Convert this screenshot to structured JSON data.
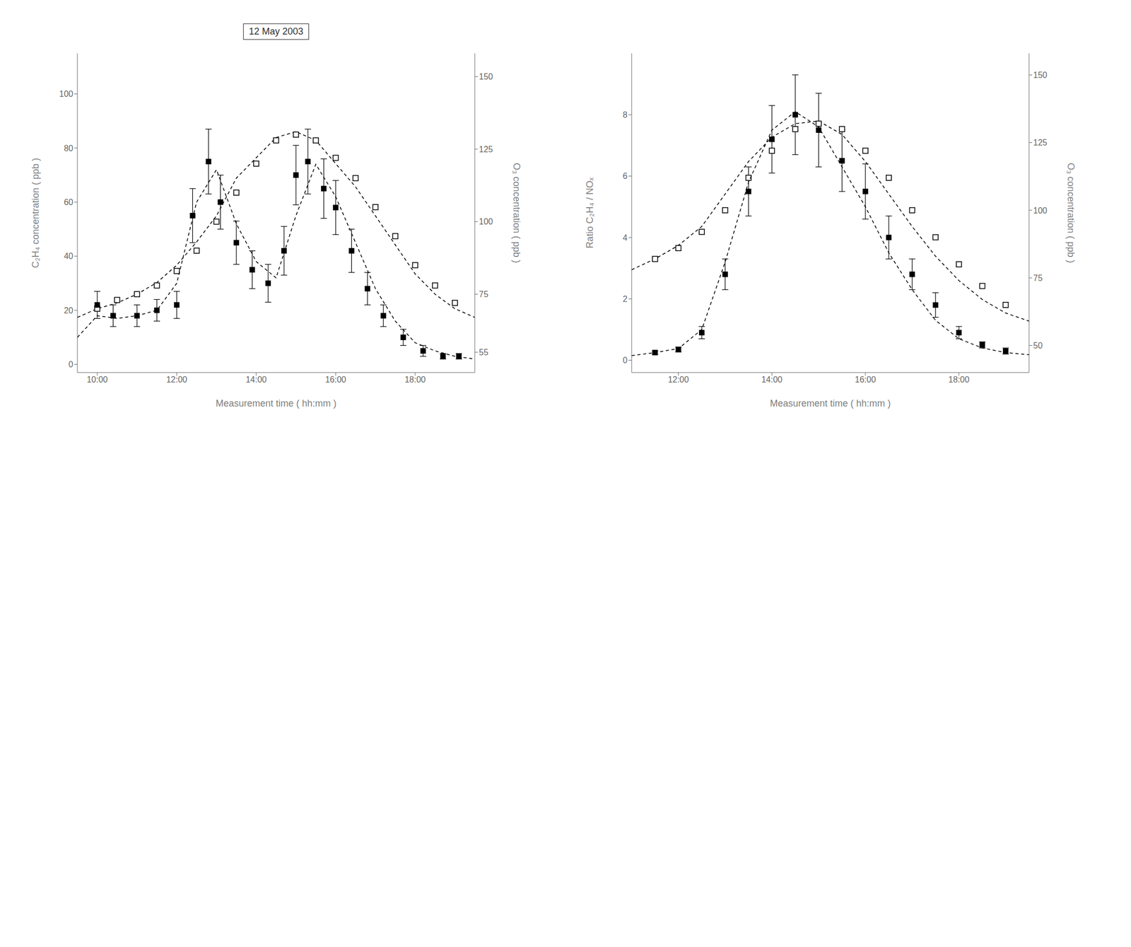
{
  "chart_data": [
    {
      "type": "scatter",
      "xlabel": "Measurement time  ( hh:mm )",
      "ylabel": "C₂H₄ concentration  ( ppb )",
      "y2label": "O₃ concentration  ( ppb )",
      "annotations": [
        {
          "text": "12 May 2003"
        }
      ],
      "xlim": [
        9.5,
        19.5
      ],
      "xticks": [
        {
          "value": 10.0,
          "label": "10:00"
        },
        {
          "value": 12.0,
          "label": "12:00"
        },
        {
          "value": 14.0,
          "label": "14:00"
        },
        {
          "value": 16.0,
          "label": "16:00"
        },
        {
          "value": 18.0,
          "label": "18:00"
        }
      ],
      "ylim": [
        -3,
        115
      ],
      "yticks": [
        0,
        20,
        40,
        60,
        80,
        100
      ],
      "y2lim": [
        48,
        158
      ],
      "y2ticks": [
        55,
        75,
        100,
        125,
        150
      ],
      "series": [
        {
          "type": "line",
          "axis": "y2",
          "line_style": "dashed",
          "marker": "none",
          "color": "#000000",
          "x": [
            9.5,
            10.0,
            10.5,
            11.0,
            11.5,
            12.0,
            12.5,
            13.0,
            13.5,
            14.0,
            14.5,
            15.0,
            15.5,
            16.0,
            16.5,
            17.0,
            17.5,
            18.0,
            18.5,
            19.0,
            19.5
          ],
          "values": [
            67,
            70,
            72,
            75,
            79,
            85,
            93,
            102,
            115,
            122,
            129,
            131,
            128,
            120,
            112,
            102,
            92,
            82,
            75,
            70,
            67
          ]
        },
        {
          "type": "scatter",
          "axis": "y2",
          "marker": "open_square",
          "color": "#000000",
          "x": [
            10.0,
            10.5,
            11.0,
            11.5,
            12.0,
            12.5,
            13.0,
            13.5,
            14.0,
            14.5,
            15.0,
            15.5,
            16.0,
            16.5,
            17.0,
            17.5,
            18.0,
            18.5,
            19.0
          ],
          "values": [
            70,
            73,
            75,
            78,
            83,
            90,
            100,
            110,
            120,
            128,
            130,
            128,
            122,
            115,
            105,
            95,
            85,
            78,
            72
          ]
        },
        {
          "type": "line",
          "axis": "y",
          "line_style": "dashed",
          "marker": "none",
          "color": "#000000",
          "x": [
            9.5,
            10.0,
            10.5,
            11.0,
            11.5,
            12.0,
            12.5,
            13.0,
            13.5,
            14.0,
            14.5,
            15.0,
            15.5,
            16.0,
            16.5,
            17.0,
            17.5,
            18.0,
            18.5,
            19.0,
            19.5
          ],
          "values": [
            10,
            18,
            17,
            18,
            20,
            30,
            60,
            72,
            52,
            38,
            32,
            55,
            74,
            62,
            45,
            28,
            16,
            8,
            5,
            3,
            2
          ]
        },
        {
          "type": "scatter",
          "axis": "y",
          "marker": "square",
          "color": "#000000",
          "x": [
            10.0,
            10.4,
            11.0,
            11.5,
            12.0,
            12.4,
            12.8,
            13.1,
            13.5,
            13.9,
            14.3,
            14.7,
            15.0,
            15.3,
            15.7,
            16.0,
            16.4,
            16.8,
            17.2,
            17.7,
            18.2,
            18.7,
            19.1
          ],
          "values": [
            22,
            18,
            18,
            20,
            22,
            55,
            75,
            60,
            45,
            35,
            30,
            42,
            70,
            75,
            65,
            58,
            42,
            28,
            18,
            10,
            5,
            3,
            3
          ],
          "errors": [
            5,
            4,
            4,
            4,
            5,
            10,
            12,
            10,
            8,
            7,
            7,
            9,
            11,
            12,
            11,
            10,
            8,
            6,
            4,
            3,
            2,
            1,
            1
          ]
        }
      ]
    },
    {
      "type": "scatter",
      "xlabel": "Measurement time  ( hh:mm )",
      "ylabel": "Ratio C₂H₄ / NOₓ",
      "y2label": "O₃ concentration  ( ppb )",
      "xlim": [
        11.0,
        19.5
      ],
      "xticks": [
        {
          "value": 12.0,
          "label": "12:00"
        },
        {
          "value": 14.0,
          "label": "14:00"
        },
        {
          "value": 16.0,
          "label": "16:00"
        },
        {
          "value": 18.0,
          "label": "18:00"
        }
      ],
      "ylim": [
        -0.4,
        10
      ],
      "yticks": [
        0,
        2,
        4,
        6,
        8
      ],
      "y2lim": [
        40,
        158
      ],
      "y2ticks": [
        50,
        75,
        100,
        125,
        150
      ],
      "series": [
        {
          "type": "line",
          "axis": "y2",
          "line_style": "dashed",
          "marker": "none",
          "color": "#000000",
          "x": [
            11.0,
            11.5,
            12.0,
            12.5,
            13.0,
            13.5,
            14.0,
            14.5,
            15.0,
            15.5,
            16.0,
            16.5,
            17.0,
            17.5,
            18.0,
            18.5,
            19.0,
            19.5
          ],
          "values": [
            78,
            82,
            87,
            94,
            106,
            118,
            127,
            132,
            133,
            128,
            118,
            106,
            94,
            83,
            74,
            67,
            62,
            59
          ]
        },
        {
          "type": "scatter",
          "axis": "y2",
          "marker": "open_square",
          "color": "#000000",
          "x": [
            11.5,
            12.0,
            12.5,
            13.0,
            13.5,
            14.0,
            14.5,
            15.0,
            15.5,
            16.0,
            16.5,
            17.0,
            17.5,
            18.0,
            18.5,
            19.0
          ],
          "values": [
            82,
            86,
            92,
            100,
            112,
            122,
            130,
            132,
            130,
            122,
            112,
            100,
            90,
            80,
            72,
            65
          ]
        },
        {
          "type": "line",
          "axis": "y",
          "line_style": "dashed",
          "marker": "none",
          "color": "#000000",
          "x": [
            11.0,
            11.5,
            12.0,
            12.5,
            13.0,
            13.5,
            14.0,
            14.5,
            15.0,
            15.5,
            16.0,
            16.5,
            17.0,
            17.5,
            18.0,
            18.5,
            19.0,
            19.5
          ],
          "values": [
            0.15,
            0.25,
            0.38,
            1.0,
            3.2,
            5.8,
            7.5,
            8.1,
            7.6,
            6.3,
            5.0,
            3.5,
            2.3,
            1.3,
            0.7,
            0.4,
            0.25,
            0.18
          ]
        },
        {
          "type": "scatter",
          "axis": "y",
          "marker": "square",
          "color": "#000000",
          "x": [
            11.5,
            12.0,
            12.5,
            13.0,
            13.5,
            14.0,
            14.5,
            15.0,
            15.5,
            16.0,
            16.5,
            17.0,
            17.5,
            18.0,
            18.5,
            19.0
          ],
          "values": [
            0.25,
            0.35,
            0.9,
            2.8,
            5.5,
            7.2,
            8.0,
            7.5,
            6.5,
            5.5,
            4.0,
            2.8,
            1.8,
            0.9,
            0.5,
            0.3
          ],
          "errors": [
            0.05,
            0.08,
            0.2,
            0.5,
            0.8,
            1.1,
            1.3,
            1.2,
            1.0,
            0.9,
            0.7,
            0.5,
            0.4,
            0.2,
            0.1,
            0.1
          ]
        }
      ]
    }
  ]
}
